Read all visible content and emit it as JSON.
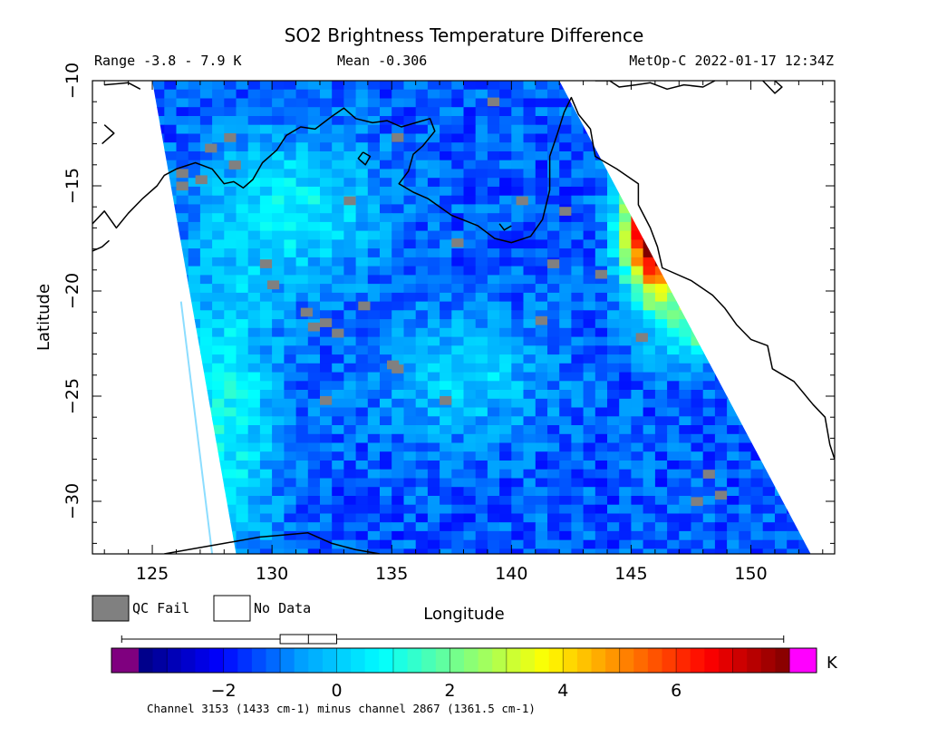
{
  "chart_data": {
    "type": "heatmap",
    "title": "SO2 Brightness Temperature Difference",
    "range_text": "Range -3.8 - 7.9 K",
    "mean_text": "Mean -0.306",
    "satellite_text": "MetOp-C 2022-01-17 12:34Z",
    "xlabel": "Longitude",
    "ylabel": "Latitude",
    "xlim": [
      122.5,
      153.5
    ],
    "ylim": [
      -32.5,
      -10
    ],
    "x_ticks": [
      125,
      130,
      135,
      140,
      145,
      150
    ],
    "y_ticks": [
      -10,
      -15,
      -20,
      -25,
      -30
    ],
    "legend": [
      {
        "label": "QC Fail",
        "color": "#808080"
      },
      {
        "label": "No Data",
        "color": "#ffffff"
      }
    ],
    "colorbar": {
      "unit": "K",
      "min": -3.5,
      "max": 8.0,
      "ticks": [
        -2,
        0,
        2,
        4,
        6
      ],
      "ticks_display": [
        "−2",
        "0",
        "2",
        "4",
        "6"
      ],
      "below_color": "#7f007f",
      "above_color": "#ff00ff",
      "colors": [
        "#000080",
        "#0000ff",
        "#00a0ff",
        "#00ffff",
        "#80ff80",
        "#ffff00",
        "#ff8000",
        "#ff0000",
        "#800000"
      ],
      "boxplot": {
        "whisker_low": -3.8,
        "q1": -1.0,
        "median": -0.5,
        "q3": 0.0,
        "whisker_high": 7.9
      }
    },
    "swath": {
      "corners": [
        [
          125.0,
          -10.0
        ],
        [
          142.0,
          -10.0
        ],
        [
          152.5,
          -32.5
        ],
        [
          128.5,
          -32.5
        ]
      ],
      "secondary_left_edge": [
        [
          126.2,
          -20.5
        ],
        [
          127.5,
          -32.5
        ]
      ]
    },
    "background_value": -1.3,
    "hotspots": [
      {
        "lon": 146.5,
        "lat": -16.5,
        "value": 7.5,
        "sigma_lon": 1.1,
        "sigma_lat": 2.2
      },
      {
        "lon": 145.8,
        "lat": -17.5,
        "value": 3.0,
        "sigma_lon": 0.8,
        "sigma_lat": 2.6
      },
      {
        "lon": 148.0,
        "lat": -21.5,
        "value": 2.5,
        "sigma_lon": 1.0,
        "sigma_lat": 1.2
      },
      {
        "lon": 131.0,
        "lat": -16.0,
        "value": 0.8,
        "sigma_lon": 2.5,
        "sigma_lat": 2.5
      },
      {
        "lon": 128.0,
        "lat": -26.0,
        "value": 1.0,
        "sigma_lon": 1.6,
        "sigma_lat": 5.0
      },
      {
        "lon": 138.0,
        "lat": -24.0,
        "value": 0.4,
        "sigma_lon": 2.5,
        "sigma_lat": 2.0
      }
    ],
    "qc_fail_points": [
      [
        126.0,
        -14.2
      ],
      [
        126.0,
        -14.8
      ],
      [
        128.0,
        -12.5
      ],
      [
        127.2,
        -13.0
      ],
      [
        129.5,
        -18.5
      ],
      [
        129.8,
        -19.5
      ],
      [
        131.5,
        -21.5
      ],
      [
        132.0,
        -21.3
      ],
      [
        132.5,
        -21.8
      ],
      [
        135.0,
        -23.5
      ],
      [
        134.8,
        -23.3
      ],
      [
        132.0,
        -25.0
      ],
      [
        137.0,
        -25.0
      ],
      [
        140.2,
        -15.5
      ],
      [
        141.0,
        -21.2
      ],
      [
        145.2,
        -22.0
      ],
      [
        148.0,
        -28.5
      ],
      [
        148.5,
        -29.5
      ],
      [
        147.5,
        -29.8
      ],
      [
        137.5,
        -17.5
      ],
      [
        141.5,
        -18.5
      ],
      [
        133.0,
        -15.5
      ],
      [
        126.8,
        -14.5
      ],
      [
        128.2,
        -13.8
      ],
      [
        131.2,
        -20.8
      ],
      [
        142.0,
        -16.0
      ],
      [
        143.5,
        -19.0
      ],
      [
        139.0,
        -10.8
      ],
      [
        135.0,
        -12.5
      ],
      [
        133.6,
        -20.5
      ]
    ],
    "coastlines": [
      [
        [
          122.5,
          -16.8
        ],
        [
          123.0,
          -16.2
        ],
        [
          123.5,
          -17.0
        ],
        [
          124.0,
          -16.3
        ],
        [
          124.6,
          -15.6
        ],
        [
          125.2,
          -15.0
        ],
        [
          125.5,
          -14.5
        ],
        [
          126.0,
          -14.2
        ],
        [
          126.8,
          -13.9
        ],
        [
          127.5,
          -14.2
        ],
        [
          128.0,
          -14.9
        ],
        [
          128.4,
          -14.8
        ],
        [
          128.8,
          -15.1
        ],
        [
          129.2,
          -14.7
        ],
        [
          129.6,
          -13.9
        ],
        [
          130.2,
          -13.3
        ],
        [
          130.6,
          -12.6
        ],
        [
          131.2,
          -12.2
        ],
        [
          131.8,
          -12.3
        ],
        [
          132.5,
          -11.7
        ],
        [
          133.0,
          -11.3
        ],
        [
          133.5,
          -11.8
        ],
        [
          134.2,
          -12.0
        ],
        [
          134.8,
          -11.9
        ],
        [
          135.4,
          -12.2
        ],
        [
          136.0,
          -12.0
        ],
        [
          136.6,
          -11.8
        ],
        [
          136.8,
          -12.4
        ],
        [
          136.3,
          -13.1
        ],
        [
          135.9,
          -13.5
        ],
        [
          135.7,
          -14.3
        ],
        [
          135.3,
          -14.9
        ],
        [
          135.9,
          -15.3
        ],
        [
          136.5,
          -15.6
        ],
        [
          137.5,
          -16.4
        ],
        [
          138.6,
          -16.9
        ],
        [
          139.3,
          -17.5
        ],
        [
          140.0,
          -17.7
        ],
        [
          140.8,
          -17.4
        ],
        [
          141.3,
          -16.6
        ],
        [
          141.6,
          -15.2
        ],
        [
          141.6,
          -13.6
        ],
        [
          141.9,
          -12.6
        ],
        [
          142.2,
          -11.5
        ],
        [
          142.5,
          -10.8
        ],
        [
          142.8,
          -11.6
        ],
        [
          143.3,
          -12.3
        ],
        [
          143.5,
          -13.6
        ],
        [
          144.4,
          -14.2
        ],
        [
          145.3,
          -14.9
        ],
        [
          145.3,
          -15.9
        ],
        [
          145.8,
          -17.0
        ],
        [
          146.1,
          -17.9
        ],
        [
          146.3,
          -18.9
        ],
        [
          147.5,
          -19.5
        ],
        [
          148.4,
          -20.2
        ],
        [
          148.9,
          -20.8
        ],
        [
          149.4,
          -21.6
        ],
        [
          150.0,
          -22.3
        ],
        [
          150.7,
          -22.6
        ],
        [
          150.9,
          -23.7
        ],
        [
          151.8,
          -24.3
        ],
        [
          152.6,
          -25.4
        ],
        [
          153.1,
          -26.0
        ],
        [
          153.3,
          -27.3
        ],
        [
          153.5,
          -28.0
        ]
      ],
      [
        [
          123.2,
          -17.6
        ],
        [
          122.9,
          -17.9
        ],
        [
          122.5,
          -18.1
        ]
      ],
      [
        [
          122.9,
          -13.0
        ],
        [
          123.4,
          -12.5
        ],
        [
          123.0,
          -12.1
        ]
      ],
      [
        [
          123.0,
          -10.2
        ],
        [
          124.0,
          -10.1
        ],
        [
          124.5,
          -10.4
        ]
      ],
      [
        [
          125.5,
          -32.5
        ],
        [
          127.0,
          -32.2
        ],
        [
          128.0,
          -32.0
        ],
        [
          129.5,
          -31.7
        ],
        [
          130.5,
          -31.6
        ],
        [
          131.5,
          -31.5
        ],
        [
          132.5,
          -32.0
        ],
        [
          133.5,
          -32.3
        ],
        [
          134.5,
          -32.5
        ]
      ],
      [
        [
          143.5,
          -10.0
        ],
        [
          144.1,
          -10.0
        ],
        [
          144.5,
          -10.3
        ],
        [
          145.2,
          -10.2
        ],
        [
          145.8,
          -10.1
        ],
        [
          146.5,
          -10.4
        ],
        [
          147.2,
          -10.2
        ],
        [
          148.0,
          -10.3
        ],
        [
          148.5,
          -10.0
        ]
      ],
      [
        [
          150.5,
          -10.0
        ],
        [
          151.0,
          -10.6
        ],
        [
          151.3,
          -10.3
        ],
        [
          151.0,
          -10.0
        ]
      ],
      [
        [
          133.8,
          -13.4
        ],
        [
          133.6,
          -13.7
        ],
        [
          133.9,
          -14.0
        ],
        [
          134.1,
          -13.6
        ],
        [
          133.8,
          -13.4
        ]
      ],
      [
        [
          139.5,
          -16.8
        ],
        [
          139.7,
          -17.1
        ],
        [
          140.0,
          -16.9
        ]
      ]
    ],
    "footer": "Channel 3153 (1433 cm-1) minus channel 2867 (1361.5 cm-1)"
  }
}
